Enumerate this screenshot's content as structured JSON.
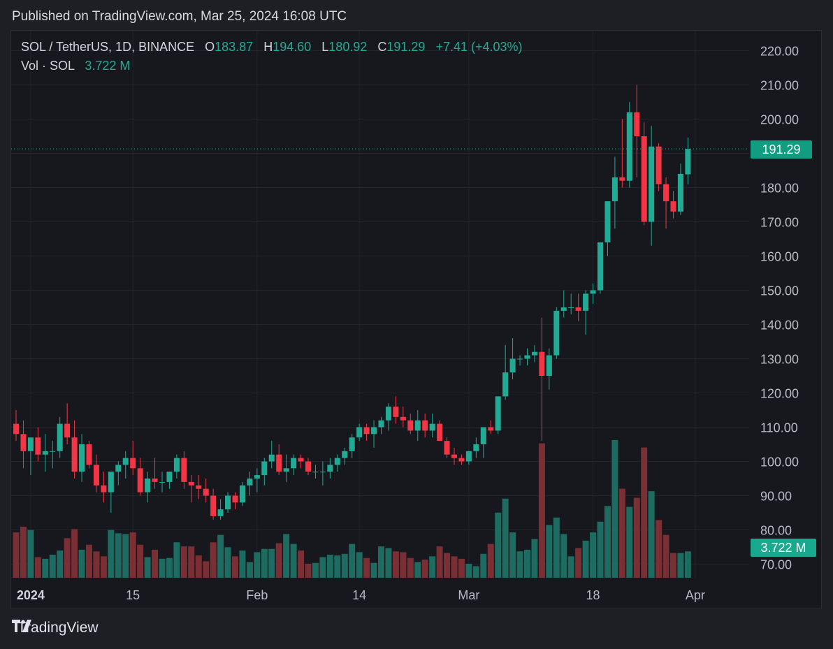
{
  "header": {
    "published": "Published on TradingView.com, Mar 25, 2024 16:08 UTC"
  },
  "legend": {
    "symbol": "SOL / TetherUS, 1D, BINANCE",
    "o_label": "O",
    "o": "183.87",
    "h_label": "H",
    "h": "194.60",
    "l_label": "L",
    "l": "180.92",
    "c_label": "C",
    "c": "191.29",
    "change": "+7.41 (+4.03%)",
    "vol_label": "Vol · SOL",
    "vol": "3.722 M"
  },
  "price_tag": "191.29",
  "volume_tag": "3.722 M",
  "footer": {
    "brand": "TradingView"
  },
  "colors": {
    "up": "#22ab94",
    "down": "#f23645",
    "vol_up": "#1d6b61",
    "vol_down": "#7a2f35",
    "bg": "#17181d",
    "grid": "#23252b"
  },
  "chart_data": {
    "type": "candlestick",
    "symbol": "SOL / TetherUS",
    "interval": "1D",
    "yticks": [
      "220.00",
      "210.00",
      "200.00",
      "190.00",
      "180.00",
      "170.00",
      "160.00",
      "150.00",
      "140.00",
      "130.00",
      "120.00",
      "110.00",
      "100.00",
      "90.00",
      "80.00",
      "70.00"
    ],
    "ylim": [
      65,
      225
    ],
    "xticks": [
      {
        "label": "2024",
        "index": 2,
        "bold": true
      },
      {
        "label": "15",
        "index": 16
      },
      {
        "label": "Feb",
        "index": 33
      },
      {
        "label": "14",
        "index": 47
      },
      {
        "label": "Mar",
        "index": 62
      },
      {
        "label": "18",
        "index": 79
      },
      {
        "label": "Apr",
        "index": 93
      }
    ],
    "candles": [
      {
        "o": 111,
        "h": 115,
        "l": 106,
        "c": 108,
        "v": 0.55
      },
      {
        "o": 108,
        "h": 112,
        "l": 98,
        "c": 103,
        "v": 0.62
      },
      {
        "o": 103,
        "h": 106,
        "l": 96,
        "c": 107,
        "v": 0.58
      },
      {
        "o": 107,
        "h": 110,
        "l": 100,
        "c": 102,
        "v": 0.25
      },
      {
        "o": 102,
        "h": 108,
        "l": 97,
        "c": 103,
        "v": 0.23
      },
      {
        "o": 103,
        "h": 106,
        "l": 98,
        "c": 103,
        "v": 0.28
      },
      {
        "o": 103,
        "h": 113,
        "l": 101,
        "c": 111,
        "v": 0.33
      },
      {
        "o": 111,
        "h": 117,
        "l": 105,
        "c": 107,
        "v": 0.48
      },
      {
        "o": 107,
        "h": 112,
        "l": 95,
        "c": 97,
        "v": 0.59
      },
      {
        "o": 97,
        "h": 108,
        "l": 94,
        "c": 105,
        "v": 0.34
      },
      {
        "o": 105,
        "h": 106,
        "l": 98,
        "c": 99,
        "v": 0.4
      },
      {
        "o": 99,
        "h": 102,
        "l": 91,
        "c": 93,
        "v": 0.32
      },
      {
        "o": 93,
        "h": 97,
        "l": 88,
        "c": 91,
        "v": 0.26
      },
      {
        "o": 91,
        "h": 97,
        "l": 85,
        "c": 97,
        "v": 0.58
      },
      {
        "o": 97,
        "h": 100,
        "l": 93,
        "c": 99,
        "v": 0.54
      },
      {
        "o": 99,
        "h": 103,
        "l": 95,
        "c": 101,
        "v": 0.53
      },
      {
        "o": 101,
        "h": 106,
        "l": 96,
        "c": 98,
        "v": 0.55
      },
      {
        "o": 98,
        "h": 101,
        "l": 90,
        "c": 91,
        "v": 0.4
      },
      {
        "o": 91,
        "h": 97,
        "l": 88,
        "c": 95,
        "v": 0.25
      },
      {
        "o": 95,
        "h": 101,
        "l": 92,
        "c": 94,
        "v": 0.34
      },
      {
        "o": 94,
        "h": 97,
        "l": 91,
        "c": 94,
        "v": 0.23
      },
      {
        "o": 94,
        "h": 97,
        "l": 92,
        "c": 97,
        "v": 0.24
      },
      {
        "o": 97,
        "h": 102,
        "l": 95,
        "c": 101,
        "v": 0.43
      },
      {
        "o": 101,
        "h": 103,
        "l": 92,
        "c": 94,
        "v": 0.38
      },
      {
        "o": 94,
        "h": 96,
        "l": 88,
        "c": 93,
        "v": 0.38
      },
      {
        "o": 93,
        "h": 96,
        "l": 89,
        "c": 92,
        "v": 0.27
      },
      {
        "o": 92,
        "h": 95,
        "l": 88,
        "c": 90,
        "v": 0.2
      },
      {
        "o": 90,
        "h": 92,
        "l": 83,
        "c": 84,
        "v": 0.43
      },
      {
        "o": 84,
        "h": 89,
        "l": 83,
        "c": 86,
        "v": 0.52
      },
      {
        "o": 86,
        "h": 91,
        "l": 85,
        "c": 90,
        "v": 0.37
      },
      {
        "o": 90,
        "h": 91,
        "l": 86,
        "c": 88,
        "v": 0.26
      },
      {
        "o": 88,
        "h": 94,
        "l": 87,
        "c": 93,
        "v": 0.33
      },
      {
        "o": 93,
        "h": 97,
        "l": 90,
        "c": 95,
        "v": 0.19
      },
      {
        "o": 95,
        "h": 98,
        "l": 91,
        "c": 96,
        "v": 0.31
      },
      {
        "o": 96,
        "h": 101,
        "l": 93,
        "c": 100,
        "v": 0.35
      },
      {
        "o": 100,
        "h": 106,
        "l": 98,
        "c": 102,
        "v": 0.35
      },
      {
        "o": 102,
        "h": 105,
        "l": 96,
        "c": 97,
        "v": 0.42
      },
      {
        "o": 97,
        "h": 102,
        "l": 94,
        "c": 98,
        "v": 0.53
      },
      {
        "o": 98,
        "h": 102,
        "l": 96,
        "c": 101,
        "v": 0.41
      },
      {
        "o": 101,
        "h": 102,
        "l": 98,
        "c": 100,
        "v": 0.33
      },
      {
        "o": 100,
        "h": 101,
        "l": 96,
        "c": 97,
        "v": 0.17
      },
      {
        "o": 97,
        "h": 99,
        "l": 95,
        "c": 97,
        "v": 0.18
      },
      {
        "o": 97,
        "h": 100,
        "l": 93,
        "c": 97,
        "v": 0.25
      },
      {
        "o": 97,
        "h": 101,
        "l": 95,
        "c": 99,
        "v": 0.28
      },
      {
        "o": 99,
        "h": 102,
        "l": 97,
        "c": 101,
        "v": 0.27
      },
      {
        "o": 101,
        "h": 104,
        "l": 99,
        "c": 103,
        "v": 0.29
      },
      {
        "o": 103,
        "h": 108,
        "l": 101,
        "c": 107,
        "v": 0.41
      },
      {
        "o": 107,
        "h": 111,
        "l": 106,
        "c": 110,
        "v": 0.31
      },
      {
        "o": 110,
        "h": 111,
        "l": 106,
        "c": 108,
        "v": 0.24
      },
      {
        "o": 108,
        "h": 112,
        "l": 104,
        "c": 110,
        "v": 0.18
      },
      {
        "o": 110,
        "h": 113,
        "l": 108,
        "c": 112,
        "v": 0.38
      },
      {
        "o": 112,
        "h": 117,
        "l": 109,
        "c": 116,
        "v": 0.36
      },
      {
        "o": 116,
        "h": 119,
        "l": 111,
        "c": 113,
        "v": 0.32
      },
      {
        "o": 113,
        "h": 116,
        "l": 110,
        "c": 112,
        "v": 0.31
      },
      {
        "o": 112,
        "h": 114,
        "l": 108,
        "c": 109,
        "v": 0.24
      },
      {
        "o": 109,
        "h": 115,
        "l": 106,
        "c": 112,
        "v": 0.19
      },
      {
        "o": 112,
        "h": 114,
        "l": 107,
        "c": 109,
        "v": 0.22
      },
      {
        "o": 109,
        "h": 114,
        "l": 107,
        "c": 111,
        "v": 0.26
      },
      {
        "o": 111,
        "h": 112,
        "l": 106,
        "c": 106,
        "v": 0.38
      },
      {
        "o": 106,
        "h": 107,
        "l": 101,
        "c": 102,
        "v": 0.3
      },
      {
        "o": 102,
        "h": 104,
        "l": 99,
        "c": 101,
        "v": 0.26
      },
      {
        "o": 101,
        "h": 102,
        "l": 99,
        "c": 100,
        "v": 0.23
      },
      {
        "o": 100,
        "h": 103,
        "l": 99,
        "c": 103,
        "v": 0.17
      },
      {
        "o": 103,
        "h": 107,
        "l": 101,
        "c": 105,
        "v": 0.14
      },
      {
        "o": 105,
        "h": 110,
        "l": 101,
        "c": 110,
        "v": 0.29
      },
      {
        "o": 110,
        "h": 112,
        "l": 108,
        "c": 109,
        "v": 0.41
      },
      {
        "o": 109,
        "h": 119,
        "l": 108,
        "c": 119,
        "v": 0.79
      },
      {
        "o": 119,
        "h": 134,
        "l": 118,
        "c": 126,
        "v": 0.96
      },
      {
        "o": 126,
        "h": 136,
        "l": 124,
        "c": 130,
        "v": 0.55
      },
      {
        "o": 130,
        "h": 131,
        "l": 128,
        "c": 130,
        "v": 0.32
      },
      {
        "o": 130,
        "h": 133,
        "l": 128,
        "c": 131,
        "v": 0.34
      },
      {
        "o": 131,
        "h": 134,
        "l": 129,
        "c": 132,
        "v": 0.47
      },
      {
        "o": 132,
        "h": 142,
        "l": 106,
        "c": 125,
        "v": 1.63
      },
      {
        "o": 125,
        "h": 133,
        "l": 121,
        "c": 131,
        "v": 0.64
      },
      {
        "o": 131,
        "h": 145,
        "l": 130,
        "c": 144,
        "v": 0.73
      },
      {
        "o": 144,
        "h": 150,
        "l": 142,
        "c": 145,
        "v": 0.53
      },
      {
        "o": 145,
        "h": 149,
        "l": 143,
        "c": 145,
        "v": 0.26
      },
      {
        "o": 145,
        "h": 149,
        "l": 141,
        "c": 144,
        "v": 0.36
      },
      {
        "o": 144,
        "h": 150,
        "l": 137,
        "c": 149,
        "v": 0.45
      },
      {
        "o": 149,
        "h": 152,
        "l": 146,
        "c": 150,
        "v": 0.55
      },
      {
        "o": 150,
        "h": 164,
        "l": 149,
        "c": 164,
        "v": 0.68
      },
      {
        "o": 164,
        "h": 176,
        "l": 160,
        "c": 176,
        "v": 0.87
      },
      {
        "o": 176,
        "h": 189,
        "l": 168,
        "c": 183,
        "v": 1.67
      },
      {
        "o": 183,
        "h": 200,
        "l": 180,
        "c": 182,
        "v": 1.08
      },
      {
        "o": 182,
        "h": 205,
        "l": 180,
        "c": 202,
        "v": 0.86
      },
      {
        "o": 202,
        "h": 210,
        "l": 183,
        "c": 195,
        "v": 0.97
      },
      {
        "o": 195,
        "h": 199,
        "l": 169,
        "c": 170,
        "v": 1.58
      },
      {
        "o": 170,
        "h": 198,
        "l": 163,
        "c": 192,
        "v": 1.05
      },
      {
        "o": 192,
        "h": 193,
        "l": 179,
        "c": 181,
        "v": 0.7
      },
      {
        "o": 181,
        "h": 183,
        "l": 168,
        "c": 176,
        "v": 0.52
      },
      {
        "o": 176,
        "h": 179,
        "l": 171,
        "c": 173,
        "v": 0.3
      },
      {
        "o": 173,
        "h": 187,
        "l": 172,
        "c": 184,
        "v": 0.3
      },
      {
        "o": 183.87,
        "h": 194.6,
        "l": 180.92,
        "c": 191.29,
        "v": 0.32
      }
    ]
  }
}
